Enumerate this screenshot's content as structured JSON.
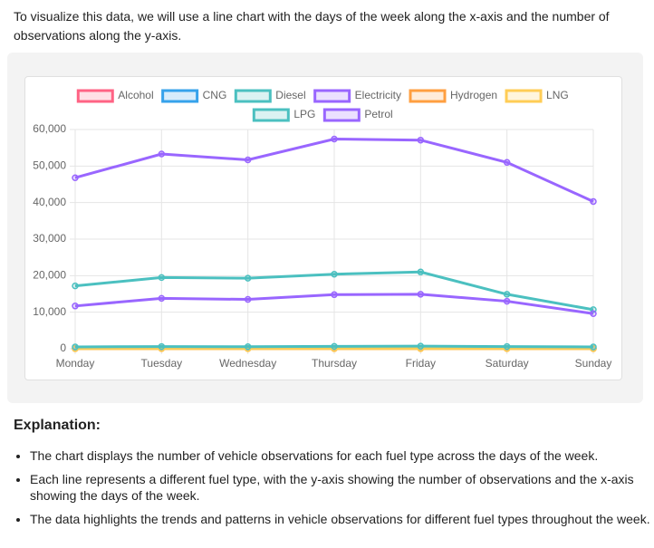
{
  "intro": "To visualize this data, we will use a line chart with the days of the week along the x-axis and the number of observations along the y-axis.",
  "chart_data": {
    "type": "line",
    "categories": [
      "Monday",
      "Tuesday",
      "Wednesday",
      "Thursday",
      "Friday",
      "Saturday",
      "Sunday"
    ],
    "series": [
      {
        "name": "Alcohol",
        "color": "#ff6384",
        "values": [
          50,
          60,
          55,
          60,
          65,
          55,
          45
        ]
      },
      {
        "name": "CNG",
        "color": "#36a2eb",
        "values": [
          100,
          110,
          105,
          115,
          120,
          100,
          80
        ]
      },
      {
        "name": "Diesel",
        "color": "#4bc0c0",
        "values": [
          17200,
          19500,
          19300,
          20400,
          21000,
          14900,
          10700
        ]
      },
      {
        "name": "Electricity",
        "color": "#9966ff",
        "values": [
          11700,
          13800,
          13500,
          14800,
          14900,
          13000,
          9600
        ]
      },
      {
        "name": "Hydrogen",
        "color": "#ff9f40",
        "values": [
          10,
          12,
          11,
          13,
          14,
          12,
          9
        ]
      },
      {
        "name": "LNG",
        "color": "#ffcd56",
        "values": [
          20,
          25,
          22,
          26,
          28,
          24,
          18
        ]
      },
      {
        "name": "LPG",
        "color": "#4bc0c0",
        "values": [
          500,
          600,
          550,
          650,
          700,
          600,
          500
        ]
      },
      {
        "name": "Petrol",
        "color": "#9966ff",
        "values": [
          46800,
          53300,
          51700,
          57400,
          57100,
          51000,
          40300
        ]
      }
    ],
    "ylim": [
      0,
      60000
    ],
    "yticks": [
      0,
      {
        "value": 10000,
        "label": "10,000"
      },
      {
        "value": 20000,
        "label": "20,000"
      },
      {
        "value": 30000,
        "label": "30,000"
      },
      {
        "value": 40000,
        "label": "40,000"
      },
      {
        "value": 50000,
        "label": "50,000"
      },
      {
        "value": 60000,
        "label": "60,000"
      }
    ],
    "grid": true,
    "legend": "top"
  },
  "explanation": {
    "title": "Explanation:",
    "bullets": [
      "The chart displays the number of vehicle observations for each fuel type across the days of the week.",
      "Each line represents a different fuel type, with the y-axis showing the number of observations and the x-axis showing the days of the week.",
      "The data highlights the trends and patterns in vehicle observations for different fuel types throughout the week."
    ]
  }
}
